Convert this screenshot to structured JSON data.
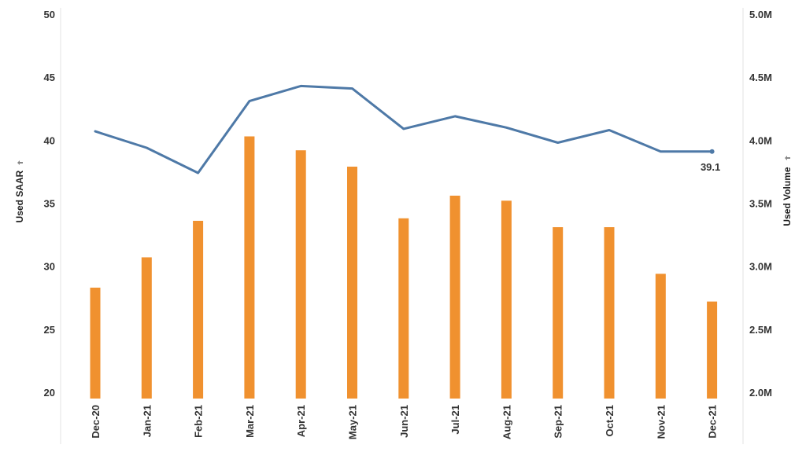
{
  "chart_data": {
    "type": "bar",
    "categories": [
      "Dec-20",
      "Jan-21",
      "Feb-21",
      "Mar-21",
      "Apr-21",
      "May-21",
      "Jun-21",
      "Jul-21",
      "Aug-21",
      "Sep-21",
      "Oct-21",
      "Nov-21",
      "Dec-21"
    ],
    "series": [
      {
        "name": "Used Volume",
        "type": "bar",
        "axis": "right",
        "color": "#f0912f",
        "values": [
          2.83,
          3.07,
          3.36,
          4.03,
          3.92,
          3.79,
          3.38,
          3.56,
          3.52,
          3.31,
          3.31,
          2.94,
          2.72
        ]
      },
      {
        "name": "Used SAAR",
        "type": "line",
        "axis": "left",
        "color": "#4e79a7",
        "values": [
          40.7,
          39.4,
          37.4,
          43.1,
          44.3,
          44.1,
          40.9,
          41.9,
          41.0,
          39.8,
          40.8,
          39.1,
          39.1
        ]
      }
    ],
    "ylabel": "Used SAAR",
    "y2label": "Used Volume",
    "ylim": [
      20,
      50
    ],
    "y2lim": [
      2.0,
      5.0
    ],
    "yticks": [
      "20",
      "25",
      "30",
      "35",
      "40",
      "45",
      "50"
    ],
    "y2ticks": [
      "2.0M",
      "2.5M",
      "3.0M",
      "3.5M",
      "4.0M",
      "4.5M",
      "5.0M"
    ],
    "annotations": [
      {
        "series": "Used SAAR",
        "category": "Dec-21",
        "text": "39.1"
      }
    ],
    "grid": false,
    "legend": "none"
  }
}
